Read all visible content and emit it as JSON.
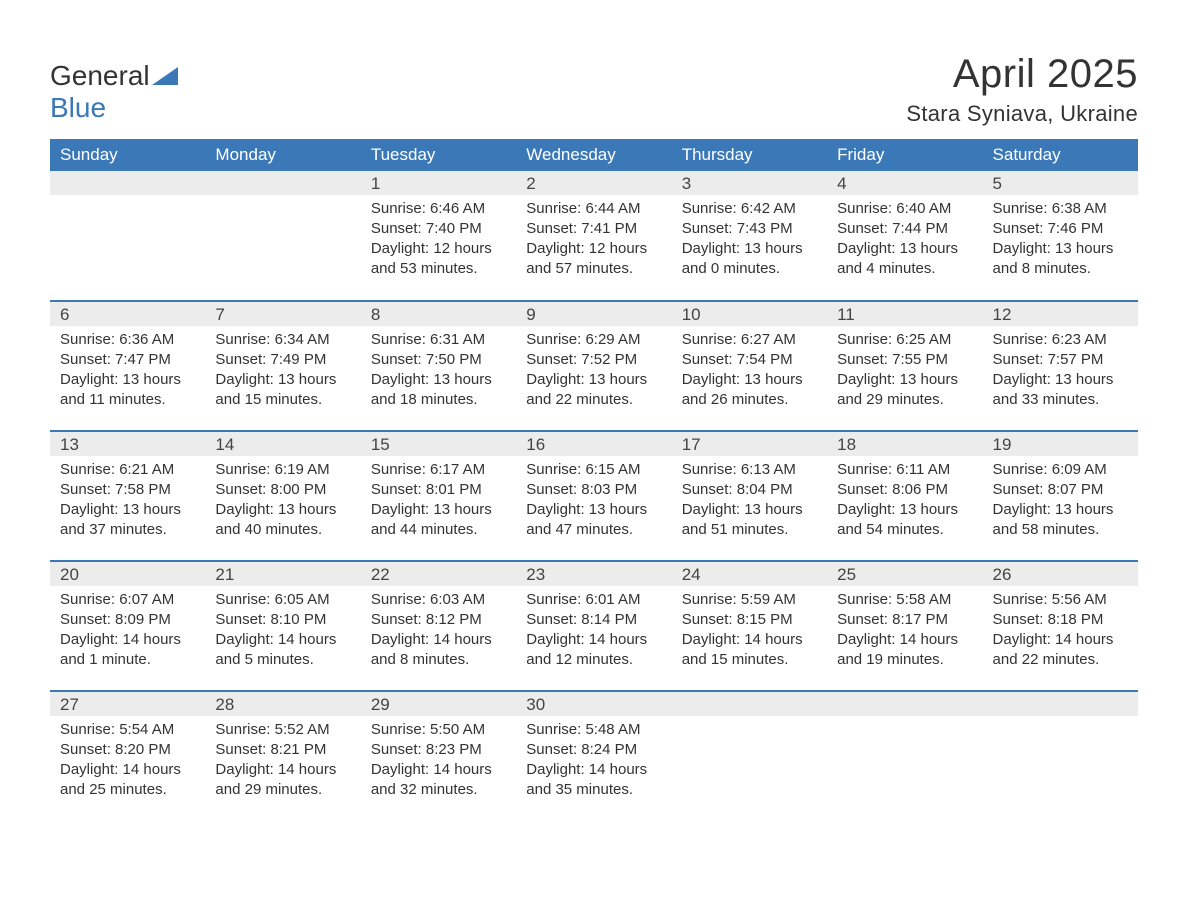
{
  "brand": {
    "word1": "General",
    "word2": "Blue"
  },
  "colors": {
    "accent": "#3b78b8",
    "header_text": "#ffffff",
    "daybar_bg": "#ececec",
    "text": "#333333",
    "bg": "#ffffff"
  },
  "typography": {
    "body_family": "Arial",
    "month_title_size_pt": 30,
    "location_size_pt": 16,
    "weekday_size_pt": 13,
    "daynum_size_pt": 13,
    "cell_size_pt": 11
  },
  "header": {
    "month_title": "April 2025",
    "location": "Stara Syniava, Ukraine"
  },
  "weekdays": [
    "Sunday",
    "Monday",
    "Tuesday",
    "Wednesday",
    "Thursday",
    "Friday",
    "Saturday"
  ],
  "calendar": {
    "rows": 5,
    "cols": 7,
    "first_weekday_index": 2,
    "days_in_month": 30
  },
  "labels": {
    "sunrise": "Sunrise: ",
    "sunset": "Sunset: ",
    "daylight": "Daylight: "
  },
  "days": {
    "1": {
      "sunrise": "6:46 AM",
      "sunset": "7:40 PM",
      "daylight": "12 hours and 53 minutes."
    },
    "2": {
      "sunrise": "6:44 AM",
      "sunset": "7:41 PM",
      "daylight": "12 hours and 57 minutes."
    },
    "3": {
      "sunrise": "6:42 AM",
      "sunset": "7:43 PM",
      "daylight": "13 hours and 0 minutes."
    },
    "4": {
      "sunrise": "6:40 AM",
      "sunset": "7:44 PM",
      "daylight": "13 hours and 4 minutes."
    },
    "5": {
      "sunrise": "6:38 AM",
      "sunset": "7:46 PM",
      "daylight": "13 hours and 8 minutes."
    },
    "6": {
      "sunrise": "6:36 AM",
      "sunset": "7:47 PM",
      "daylight": "13 hours and 11 minutes."
    },
    "7": {
      "sunrise": "6:34 AM",
      "sunset": "7:49 PM",
      "daylight": "13 hours and 15 minutes."
    },
    "8": {
      "sunrise": "6:31 AM",
      "sunset": "7:50 PM",
      "daylight": "13 hours and 18 minutes."
    },
    "9": {
      "sunrise": "6:29 AM",
      "sunset": "7:52 PM",
      "daylight": "13 hours and 22 minutes."
    },
    "10": {
      "sunrise": "6:27 AM",
      "sunset": "7:54 PM",
      "daylight": "13 hours and 26 minutes."
    },
    "11": {
      "sunrise": "6:25 AM",
      "sunset": "7:55 PM",
      "daylight": "13 hours and 29 minutes."
    },
    "12": {
      "sunrise": "6:23 AM",
      "sunset": "7:57 PM",
      "daylight": "13 hours and 33 minutes."
    },
    "13": {
      "sunrise": "6:21 AM",
      "sunset": "7:58 PM",
      "daylight": "13 hours and 37 minutes."
    },
    "14": {
      "sunrise": "6:19 AM",
      "sunset": "8:00 PM",
      "daylight": "13 hours and 40 minutes."
    },
    "15": {
      "sunrise": "6:17 AM",
      "sunset": "8:01 PM",
      "daylight": "13 hours and 44 minutes."
    },
    "16": {
      "sunrise": "6:15 AM",
      "sunset": "8:03 PM",
      "daylight": "13 hours and 47 minutes."
    },
    "17": {
      "sunrise": "6:13 AM",
      "sunset": "8:04 PM",
      "daylight": "13 hours and 51 minutes."
    },
    "18": {
      "sunrise": "6:11 AM",
      "sunset": "8:06 PM",
      "daylight": "13 hours and 54 minutes."
    },
    "19": {
      "sunrise": "6:09 AM",
      "sunset": "8:07 PM",
      "daylight": "13 hours and 58 minutes."
    },
    "20": {
      "sunrise": "6:07 AM",
      "sunset": "8:09 PM",
      "daylight": "14 hours and 1 minute."
    },
    "21": {
      "sunrise": "6:05 AM",
      "sunset": "8:10 PM",
      "daylight": "14 hours and 5 minutes."
    },
    "22": {
      "sunrise": "6:03 AM",
      "sunset": "8:12 PM",
      "daylight": "14 hours and 8 minutes."
    },
    "23": {
      "sunrise": "6:01 AM",
      "sunset": "8:14 PM",
      "daylight": "14 hours and 12 minutes."
    },
    "24": {
      "sunrise": "5:59 AM",
      "sunset": "8:15 PM",
      "daylight": "14 hours and 15 minutes."
    },
    "25": {
      "sunrise": "5:58 AM",
      "sunset": "8:17 PM",
      "daylight": "14 hours and 19 minutes."
    },
    "26": {
      "sunrise": "5:56 AM",
      "sunset": "8:18 PM",
      "daylight": "14 hours and 22 minutes."
    },
    "27": {
      "sunrise": "5:54 AM",
      "sunset": "8:20 PM",
      "daylight": "14 hours and 25 minutes."
    },
    "28": {
      "sunrise": "5:52 AM",
      "sunset": "8:21 PM",
      "daylight": "14 hours and 29 minutes."
    },
    "29": {
      "sunrise": "5:50 AM",
      "sunset": "8:23 PM",
      "daylight": "14 hours and 32 minutes."
    },
    "30": {
      "sunrise": "5:48 AM",
      "sunset": "8:24 PM",
      "daylight": "14 hours and 35 minutes."
    }
  }
}
